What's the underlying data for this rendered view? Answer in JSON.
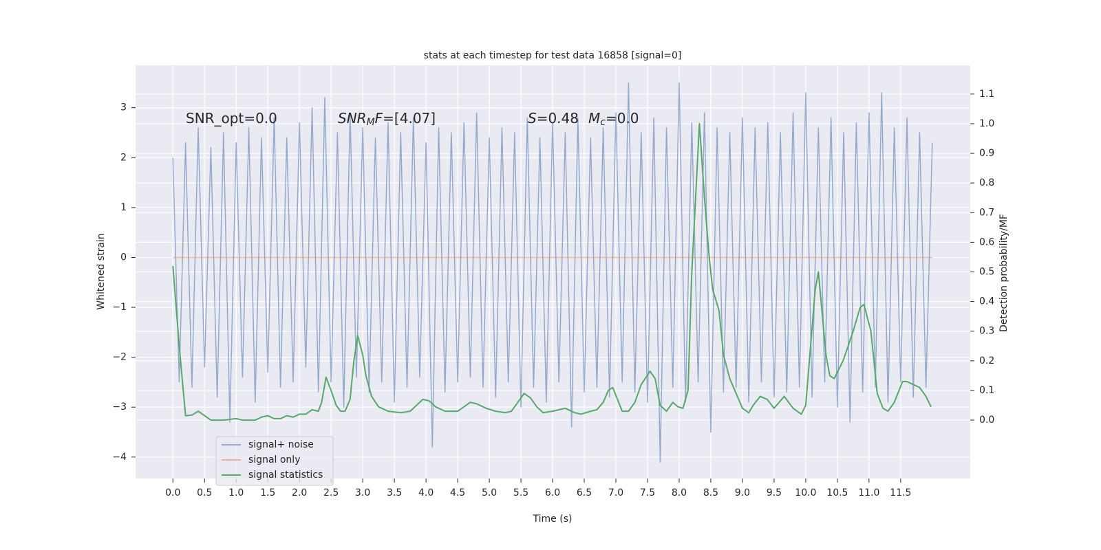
{
  "chart_data": {
    "type": "line",
    "title": "stats at each timestep for test data 16858 [signal=0]",
    "xlabel": "Time (s)",
    "ylabel": "Whitened strain",
    "y2label": "Detection probability/MF",
    "annotations": [
      {
        "parts": [
          "SNR_opt=0.0"
        ]
      },
      {
        "parts": [
          "SNR",
          "M",
          "F",
          "=[4.07]"
        ]
      },
      {
        "parts": [
          "S",
          "=0.48",
          "M",
          "c",
          "=0.0"
        ]
      }
    ],
    "grid": true,
    "legend": "lower left",
    "xlim": [
      -0.59,
      12.6
    ],
    "ylim": [
      -4.43,
      3.85
    ],
    "y2lim": [
      -0.197,
      1.197
    ],
    "xticks": [
      {
        "value": 0,
        "label": "0.0"
      },
      0.5,
      {
        "value": 1,
        "label": "1.0"
      },
      1.5,
      {
        "value": 2,
        "label": "2.0"
      },
      2.5,
      {
        "value": 3,
        "label": "3.0"
      },
      3.5,
      {
        "value": 4,
        "label": "4.0"
      },
      4.5,
      {
        "value": 5,
        "label": "5.0"
      },
      5.5,
      {
        "value": 6,
        "label": "6.0"
      },
      6.5,
      {
        "value": 7,
        "label": "7.0"
      },
      7.5,
      {
        "value": 8,
        "label": "8.0"
      },
      8.5,
      {
        "value": 9,
        "label": "9.0"
      },
      9.5,
      {
        "value": 10,
        "label": "10.0"
      },
      10.5,
      {
        "value": 11,
        "label": "11.0"
      },
      11.5
    ],
    "yticks": [
      {
        "value": -4,
        "label": "−4"
      },
      {
        "value": -3,
        "label": "−3"
      },
      {
        "value": -2,
        "label": "−2"
      },
      {
        "value": -1,
        "label": "−1"
      },
      0,
      1,
      2,
      3
    ],
    "y2ticks": [
      {
        "value": 0,
        "label": "0.0"
      },
      0.1,
      0.2,
      0.3,
      0.4,
      0.5,
      0.6,
      0.7,
      0.8,
      0.9,
      {
        "value": 1,
        "label": "1.0"
      },
      1.1
    ],
    "series": [
      {
        "name": "signal+ noise",
        "color": "#4c72b0",
        "x": [
          0.0,
          0.1,
          0.2,
          0.3,
          0.4,
          0.5,
          0.6,
          0.7,
          0.8,
          0.9,
          1.0,
          1.1,
          1.2,
          1.3,
          1.4,
          1.5,
          1.6,
          1.7,
          1.8,
          1.9,
          2.0,
          2.1,
          2.2,
          2.3,
          2.4,
          2.5,
          2.6,
          2.7,
          2.8,
          2.9,
          3.0,
          3.1,
          3.2,
          3.3,
          3.4,
          3.5,
          3.6,
          3.7,
          3.8,
          3.9,
          4.0,
          4.1,
          4.2,
          4.3,
          4.4,
          4.5,
          4.6,
          4.7,
          4.8,
          4.9,
          5.0,
          5.1,
          5.2,
          5.3,
          5.4,
          5.5,
          5.6,
          5.7,
          5.8,
          5.9,
          6.0,
          6.1,
          6.2,
          6.3,
          6.4,
          6.5,
          6.6,
          6.7,
          6.8,
          6.9,
          7.0,
          7.1,
          7.2,
          7.3,
          7.4,
          7.5,
          7.6,
          7.7,
          7.8,
          7.9,
          8.0,
          8.1,
          8.2,
          8.3,
          8.4,
          8.5,
          8.6,
          8.7,
          8.8,
          8.9,
          9.0,
          9.1,
          9.2,
          9.3,
          9.4,
          9.5,
          9.6,
          9.7,
          9.8,
          9.9,
          10.0,
          10.1,
          10.2,
          10.3,
          10.4,
          10.5,
          10.6,
          10.7,
          10.8,
          10.9,
          11.0,
          11.1,
          11.2,
          11.3,
          11.4,
          11.5,
          11.6,
          11.7,
          11.8,
          11.9,
          12.0
        ],
        "values": [
          2.0,
          -2.5,
          2.3,
          -2.6,
          2.6,
          -2.2,
          2.2,
          -2.8,
          2.5,
          -3.3,
          2.3,
          -2.4,
          2.6,
          -2.9,
          2.4,
          -2.3,
          2.8,
          -2.6,
          2.4,
          -2.5,
          2.7,
          -2.2,
          3.0,
          -2.7,
          3.2,
          -2.5,
          2.5,
          -3.0,
          2.9,
          -2.4,
          2.6,
          -2.7,
          2.4,
          -2.5,
          2.7,
          -2.9,
          2.5,
          -2.6,
          2.8,
          -2.4,
          2.3,
          -3.8,
          2.6,
          -2.7,
          2.5,
          -2.5,
          2.7,
          -2.4,
          2.9,
          -2.6,
          2.4,
          -2.8,
          2.6,
          -2.5,
          2.5,
          -3.0,
          2.8,
          -2.6,
          2.4,
          -2.9,
          2.7,
          -2.5,
          2.5,
          -3.4,
          2.8,
          -2.7,
          2.4,
          -2.6,
          2.6,
          -2.8,
          2.9,
          -2.5,
          3.5,
          -2.7,
          2.5,
          -2.9,
          2.8,
          -4.1,
          2.6,
          -2.6,
          3.5,
          -2.9,
          2.7,
          -2.5,
          2.9,
          -3.5,
          2.6,
          -2.7,
          2.5,
          -2.6,
          2.8,
          -2.9,
          2.6,
          -2.5,
          2.7,
          -2.8,
          2.5,
          -2.7,
          2.9,
          -2.6,
          3.3,
          -2.8,
          2.6,
          -2.5,
          2.8,
          -3.0,
          2.5,
          -3.3,
          2.7,
          -2.7,
          2.9,
          -2.6,
          3.3,
          -2.9,
          2.6,
          -2.5,
          2.8,
          -2.8,
          2.5,
          -2.6,
          2.3
        ]
      },
      {
        "name": "signal only",
        "color": "#dd8452",
        "x": [
          0.0,
          12.0
        ],
        "values": [
          0,
          0
        ]
      },
      {
        "name": "signal statistics",
        "color": "#55a868",
        "axis": "y2",
        "x": [
          0.0,
          0.1,
          0.2,
          0.3,
          0.4,
          0.5,
          0.6,
          0.8,
          1.0,
          1.1,
          1.3,
          1.4,
          1.5,
          1.6,
          1.7,
          1.8,
          1.9,
          2.0,
          2.1,
          2.2,
          2.3,
          2.35,
          2.42,
          2.5,
          2.58,
          2.65,
          2.72,
          2.8,
          2.86,
          2.92,
          3.0,
          3.05,
          3.14,
          3.25,
          3.4,
          3.6,
          3.75,
          3.85,
          3.95,
          4.05,
          4.15,
          4.3,
          4.5,
          4.6,
          4.7,
          4.8,
          4.95,
          5.1,
          5.25,
          5.35,
          5.45,
          5.55,
          5.65,
          5.75,
          5.85,
          6.0,
          6.1,
          6.2,
          6.35,
          6.45,
          6.6,
          6.7,
          6.8,
          6.88,
          6.95,
          7.1,
          7.2,
          7.3,
          7.4,
          7.54,
          7.62,
          7.7,
          7.8,
          7.9,
          7.98,
          8.06,
          8.14,
          8.2,
          8.32,
          8.4,
          8.47,
          8.53,
          8.63,
          8.7,
          8.8,
          9.0,
          9.1,
          9.17,
          9.28,
          9.39,
          9.5,
          9.66,
          9.8,
          9.93,
          10.0,
          10.15,
          10.2,
          10.32,
          10.38,
          10.45,
          10.59,
          10.75,
          10.86,
          10.92,
          11.03,
          11.13,
          11.22,
          11.3,
          11.4,
          11.53,
          11.6,
          11.7,
          11.8,
          11.9,
          11.98
        ],
        "values": [
          0.52,
          0.25,
          0.015,
          0.017,
          0.03,
          0.015,
          0.0,
          0.0,
          0.005,
          0.0,
          0.0,
          0.01,
          0.015,
          0.005,
          0.005,
          0.015,
          0.01,
          0.02,
          0.02,
          0.035,
          0.03,
          0.06,
          0.145,
          0.1,
          0.05,
          0.03,
          0.03,
          0.07,
          0.2,
          0.285,
          0.22,
          0.15,
          0.08,
          0.045,
          0.03,
          0.025,
          0.03,
          0.05,
          0.07,
          0.065,
          0.045,
          0.03,
          0.03,
          0.045,
          0.06,
          0.055,
          0.04,
          0.03,
          0.025,
          0.03,
          0.06,
          0.09,
          0.075,
          0.045,
          0.025,
          0.03,
          0.035,
          0.04,
          0.025,
          0.02,
          0.03,
          0.035,
          0.06,
          0.1,
          0.11,
          0.03,
          0.03,
          0.06,
          0.12,
          0.165,
          0.14,
          0.05,
          0.03,
          0.06,
          0.045,
          0.04,
          0.1,
          0.5,
          1.0,
          0.75,
          0.56,
          0.44,
          0.37,
          0.22,
          0.14,
          0.04,
          0.025,
          0.05,
          0.08,
          0.07,
          0.04,
          0.08,
          0.04,
          0.02,
          0.05,
          0.44,
          0.5,
          0.22,
          0.15,
          0.14,
          0.2,
          0.3,
          0.38,
          0.39,
          0.3,
          0.09,
          0.04,
          0.03,
          0.06,
          0.13,
          0.13,
          0.12,
          0.11,
          0.08,
          0.045
        ]
      }
    ]
  }
}
